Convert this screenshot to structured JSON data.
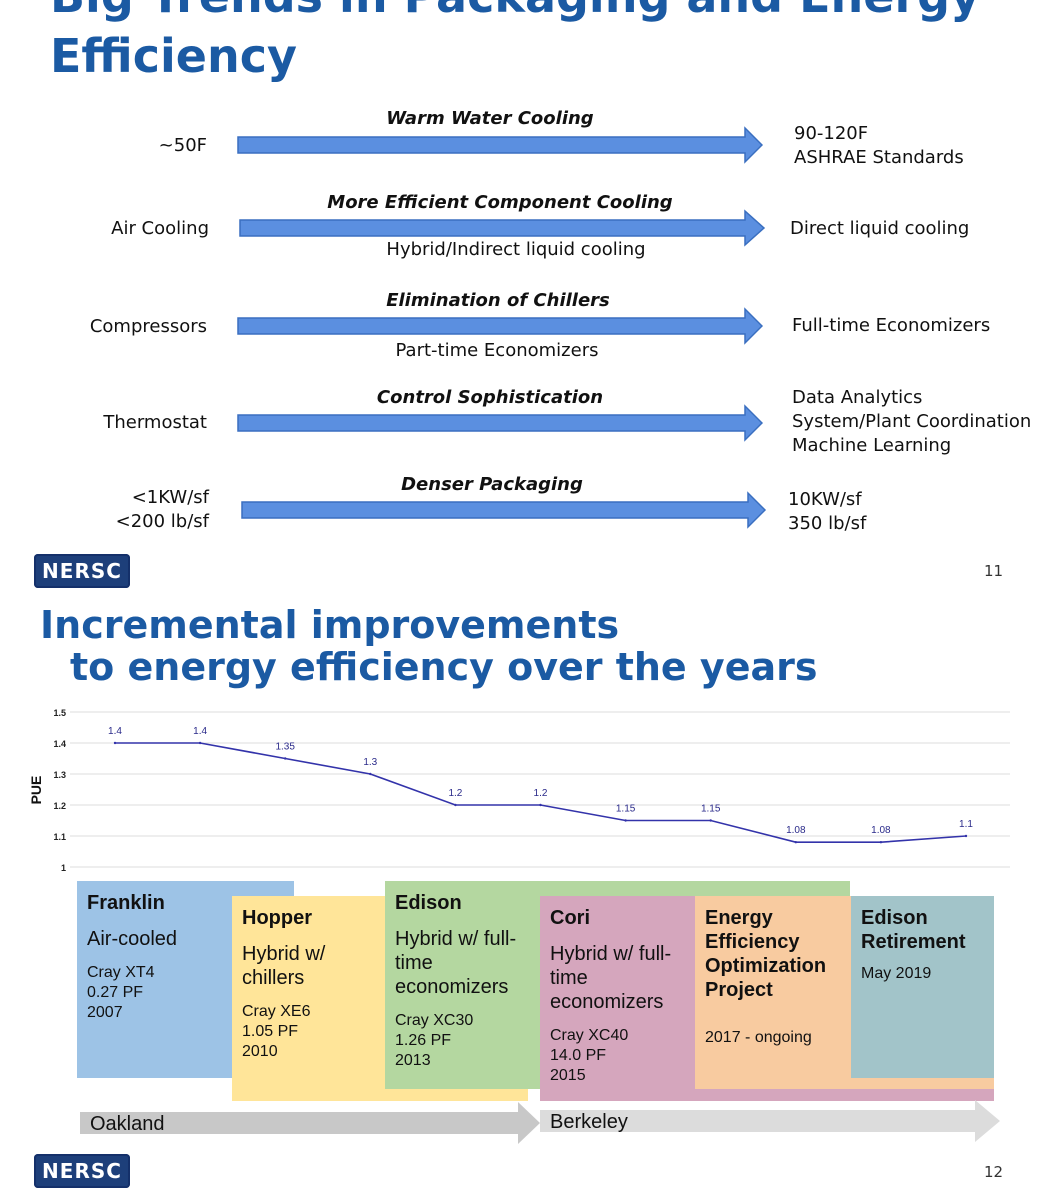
{
  "slide11": {
    "title_line1": "Big Trends in Packaging and Energy",
    "title_line2": "Efficiency",
    "page_number": "11",
    "logo_text": "NERSC",
    "trends": [
      {
        "left": [
          "~50F"
        ],
        "heading": "Warm Water Cooling",
        "middle": "",
        "right": [
          "90-120F",
          "ASHRAE Standards"
        ]
      },
      {
        "left": [
          "Air Cooling"
        ],
        "heading": "More Efficient Component Cooling",
        "middle": "Hybrid/Indirect liquid cooling",
        "right": [
          "Direct liquid cooling"
        ]
      },
      {
        "left": [
          "Compressors"
        ],
        "heading": "Elimination of Chillers",
        "middle": "Part-time Economizers",
        "right": [
          "Full-time Economizers"
        ]
      },
      {
        "left": [
          "Thermostat"
        ],
        "heading": "Control Sophistication",
        "middle": "",
        "right": [
          "Data Analytics",
          "System/Plant Coordination",
          "Machine Learning"
        ]
      },
      {
        "left": [
          "<1KW/sf",
          "<200 lb/sf"
        ],
        "heading": "Denser Packaging",
        "middle": "",
        "right": [
          "10KW/sf",
          "350 lb/sf"
        ]
      }
    ],
    "arrow_color": "#5b8fe0"
  },
  "slide12": {
    "title_line1": "Incremental improvements",
    "title_line2": "to energy efficiency over the years",
    "page_number": "12",
    "logo_text": "NERSC",
    "chart_data": {
      "type": "line",
      "ylabel": "PUE",
      "ylim": [
        1,
        1.5
      ],
      "yticks": [
        "1",
        "1.1",
        "1.2",
        "1.3",
        "1.4",
        "1.5"
      ],
      "values": [
        1.4,
        1.4,
        1.35,
        1.3,
        1.2,
        1.2,
        1.15,
        1.15,
        1.08,
        1.08,
        1.1
      ],
      "labels": [
        "1.4",
        "1.4",
        "1.35",
        "1.3",
        "1.2",
        "1.2",
        "1.15",
        "1.15",
        "1.08",
        "1.08",
        "1.1"
      ],
      "line_color": "#3333aa"
    },
    "systems": [
      {
        "name": "Franklin",
        "subtitle": "Air-cooled",
        "details": "Cray XT4\n0.27 PF\n2007",
        "color": "#9dc3e6"
      },
      {
        "name": "Hopper",
        "subtitle": "Hybrid w/ chillers",
        "details": "Cray XE6\n1.05 PF\n2010",
        "color": "#ffe599"
      },
      {
        "name": "Edison",
        "subtitle": "Hybrid w/ full-time economizers",
        "details": "Cray XC30\n1.26 PF\n2013",
        "color": "#b4d7a0"
      },
      {
        "name": "Cori",
        "subtitle": "Hybrid w/ full-time economizers",
        "details": "Cray XC40\n14.0 PF\n2015",
        "color": "#d5a6bd"
      },
      {
        "name": "Energy Efficiency Optimization Project",
        "subtitle": "",
        "details": "2017 - ongoing",
        "color": "#f8cba0"
      },
      {
        "name": "Edison Retirement",
        "subtitle": "",
        "details": "May 2019",
        "color": "#a2c4c9"
      }
    ],
    "locations": [
      "Oakland",
      "Berkeley"
    ]
  }
}
